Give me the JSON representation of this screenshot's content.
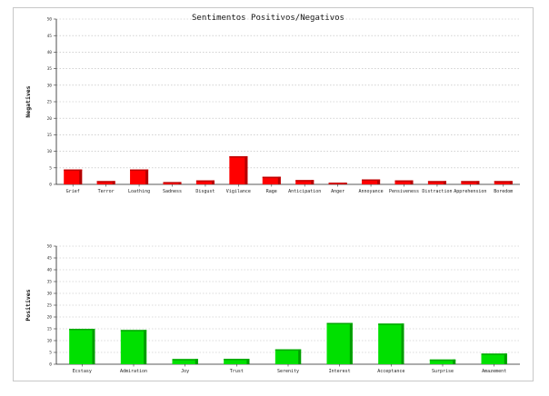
{
  "title": "Sentimentos Positivos/Negativos",
  "chart_data": [
    {
      "type": "bar",
      "name": "negatives",
      "ylabel": "Negatives",
      "ylim": [
        0,
        50
      ],
      "yticks": [
        0,
        5,
        10,
        15,
        20,
        25,
        30,
        35,
        40,
        45,
        50
      ],
      "grid": true,
      "color": "#ff0000",
      "categories": [
        "Grief",
        "Terror",
        "Loathing",
        "Sadness",
        "Disgust",
        "Vigilance",
        "Rage",
        "Anticipation",
        "Anger",
        "Annoyance",
        "Pensiveness",
        "Distraction",
        "Apprehension",
        "Boredom"
      ],
      "values": [
        4.5,
        1,
        4.5,
        0.7,
        1.2,
        8.5,
        2.3,
        1.3,
        0.5,
        1.5,
        1.2,
        1,
        1,
        1
      ]
    },
    {
      "type": "bar",
      "name": "positives",
      "ylabel": "Positives",
      "ylim": [
        0,
        50
      ],
      "yticks": [
        0,
        5,
        10,
        15,
        20,
        25,
        30,
        35,
        40,
        45,
        50
      ],
      "grid": true,
      "color": "#00e000",
      "categories": [
        "Ecstasy",
        "Admiration",
        "Joy",
        "Trust",
        "Serenity",
        "Interest",
        "Acceptance",
        "Surprise",
        "Amazement"
      ],
      "values": [
        15,
        14.5,
        2.2,
        2.3,
        6.3,
        17.5,
        17.2,
        2,
        4.5
      ]
    }
  ]
}
